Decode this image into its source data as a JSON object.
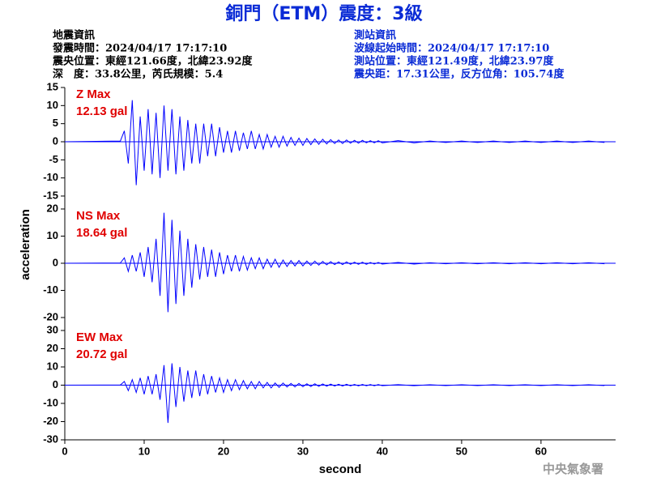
{
  "header": {
    "title": "銅門（ETM）震度：3級",
    "left": [
      "地震資訊",
      "發震時間：2024/04/17 17:17:10",
      "震央位置：東經121.66度，北緯23.92度",
      "深　度：33.8公里，芮氏規模：5.4"
    ],
    "right": [
      "測站資訊",
      "波線起始時間：2024/04/17 17:17:10",
      "測站位置：東經121.49度，北緯23.97度",
      "震央距：17.31公里，反方位角：105.74度"
    ]
  },
  "y_label": "acceleration",
  "footer": "中央氣象署",
  "chart_data": [
    {
      "type": "line",
      "annotation": [
        "Z Max",
        "12.13 gal"
      ],
      "xlim": [
        0,
        69.4
      ],
      "ylim": [
        -15,
        15
      ],
      "yticks": [
        15,
        10,
        5,
        0,
        -5,
        -10,
        -15
      ],
      "x": [
        0,
        7,
        7.5,
        8,
        8.5,
        9,
        9.5,
        10,
        10.5,
        11,
        11.5,
        12,
        12.5,
        13,
        13.5,
        14,
        14.5,
        15,
        15.5,
        16,
        16.5,
        17,
        17.5,
        18,
        18.5,
        19,
        19.5,
        20,
        20.5,
        21,
        21.5,
        22,
        22.5,
        23,
        23.5,
        24,
        24.5,
        25,
        25.5,
        26,
        26.5,
        27,
        27.5,
        28,
        28.5,
        29,
        29.5,
        30,
        30.5,
        31,
        31.5,
        32,
        32.5,
        33,
        33.5,
        34,
        34.5,
        35,
        35.5,
        36,
        36.5,
        37,
        37.5,
        38,
        38.5,
        39,
        39.5,
        40,
        42,
        44,
        46,
        48,
        50,
        52,
        54,
        56,
        58,
        60,
        62,
        64,
        66,
        68
      ],
      "series": [
        {
          "color": "#0000ff",
          "values": [
            0,
            0.2,
            3,
            -6,
            11.5,
            -12,
            7,
            -8,
            9,
            -9,
            8,
            -10,
            10,
            -8,
            9,
            -9,
            7,
            -8,
            6,
            -6,
            5,
            -6,
            5,
            -4,
            5,
            -4,
            4,
            -3,
            3,
            -3,
            3,
            -2.5,
            2.5,
            -2,
            3,
            -2,
            2,
            -2,
            2,
            -1.5,
            1.5,
            -1.5,
            1.5,
            -1.2,
            1.2,
            -1,
            1,
            -1,
            0.9,
            -0.8,
            0.8,
            -0.7,
            0.7,
            -0.6,
            0.6,
            -0.5,
            0.5,
            -0.5,
            0.5,
            -0.4,
            0.4,
            -0.4,
            0.4,
            -0.3,
            0.3,
            -0.3,
            0.3,
            -0.3,
            0.3,
            -0.3,
            0.2,
            -0.2,
            0.2,
            -0.2,
            0.2,
            -0.2,
            0.2,
            -0.2,
            0.2,
            -0.2,
            0.2,
            -0.2
          ]
        }
      ]
    },
    {
      "type": "line",
      "annotation": [
        "NS Max",
        "18.64 gal"
      ],
      "xlim": [
        0,
        69.4
      ],
      "ylim": [
        -20,
        20
      ],
      "yticks": [
        20,
        10,
        0,
        -10,
        -20
      ],
      "x": [
        0,
        7,
        7.5,
        8,
        8.5,
        9,
        9.5,
        10,
        10.5,
        11,
        11.5,
        12,
        12.5,
        13,
        13.5,
        14,
        14.5,
        15,
        15.5,
        16,
        16.5,
        17,
        17.5,
        18,
        18.5,
        19,
        19.5,
        20,
        20.5,
        21,
        21.5,
        22,
        22.5,
        23,
        23.5,
        24,
        24.5,
        25,
        25.5,
        26,
        26.5,
        27,
        27.5,
        28,
        28.5,
        29,
        29.5,
        30,
        30.5,
        31,
        31.5,
        32,
        32.5,
        33,
        33.5,
        34,
        34.5,
        35,
        35.5,
        36,
        36.5,
        37,
        37.5,
        38,
        38.5,
        39,
        39.5,
        40,
        42,
        44,
        46,
        48,
        50,
        52,
        54,
        56,
        58,
        60,
        62,
        64,
        66,
        68
      ],
      "series": [
        {
          "color": "#0000ff",
          "values": [
            0,
            0.1,
            2,
            -3,
            3,
            -3,
            4,
            -5,
            6,
            -7,
            9,
            -12,
            18.6,
            -18,
            16,
            -15,
            12,
            -12,
            9,
            -9,
            7,
            -6,
            6,
            -5,
            5,
            -5,
            4,
            -4,
            3,
            -3,
            3,
            -3,
            2.5,
            -2.5,
            2,
            -2,
            2,
            -2,
            1.5,
            -1.5,
            1.5,
            -1.5,
            1.2,
            -1.2,
            1,
            -1,
            1,
            -1,
            0.8,
            -0.8,
            0.8,
            -0.7,
            0.7,
            -0.6,
            0.6,
            -0.5,
            0.5,
            -0.5,
            0.5,
            -0.4,
            0.4,
            -0.4,
            0.4,
            -0.4,
            0.3,
            -0.3,
            0.3,
            -0.3,
            0.3,
            -0.3,
            0.2,
            -0.2,
            0.2,
            -0.2,
            0.2,
            -0.2,
            0.2,
            -0.2,
            0.2,
            -0.2,
            0.2,
            -0.2
          ]
        }
      ]
    },
    {
      "type": "line",
      "annotation": [
        "EW Max",
        "20.72 gal"
      ],
      "xlim": [
        0,
        69.4
      ],
      "ylim": [
        -30,
        30
      ],
      "yticks": [
        30,
        20,
        10,
        0,
        -10,
        -20,
        -30
      ],
      "xticks": [
        0,
        10,
        20,
        30,
        40,
        50,
        60
      ],
      "x_label": "second",
      "x": [
        0,
        7,
        7.5,
        8,
        8.5,
        9,
        9.5,
        10,
        10.5,
        11,
        11.5,
        12,
        12.5,
        13,
        13.5,
        14,
        14.5,
        15,
        15.5,
        16,
        16.5,
        17,
        17.5,
        18,
        18.5,
        19,
        19.5,
        20,
        20.5,
        21,
        21.5,
        22,
        22.5,
        23,
        23.5,
        24,
        24.5,
        25,
        25.5,
        26,
        26.5,
        27,
        27.5,
        28,
        28.5,
        29,
        29.5,
        30,
        30.5,
        31,
        31.5,
        32,
        32.5,
        33,
        33.5,
        34,
        34.5,
        35,
        35.5,
        36,
        36.5,
        37,
        37.5,
        38,
        38.5,
        39,
        39.5,
        40,
        42,
        44,
        46,
        48,
        50,
        52,
        54,
        56,
        58,
        60,
        62,
        64,
        66,
        68
      ],
      "series": [
        {
          "color": "#0000ff",
          "values": [
            0,
            0.1,
            2,
            -3,
            3,
            -4,
            4,
            -5,
            5,
            -5,
            6,
            -8,
            11,
            -20.7,
            12,
            -12,
            10,
            -9,
            8,
            -7,
            8,
            -6,
            6,
            -5,
            5,
            -4,
            4,
            -4,
            3,
            -3,
            3,
            -2.5,
            2.5,
            -2,
            2,
            -2,
            2,
            -1.5,
            1.5,
            -1.5,
            1.2,
            -1.2,
            1.2,
            -1,
            1,
            -1,
            1,
            -0.9,
            0.8,
            -0.8,
            0.8,
            -0.7,
            0.7,
            -0.6,
            0.6,
            -0.5,
            0.5,
            -0.5,
            0.5,
            -0.4,
            0.4,
            -0.4,
            0.4,
            -0.3,
            0.3,
            -0.3,
            0.3,
            -0.3,
            0.3,
            -0.3,
            0.2,
            -0.2,
            0.2,
            -0.2,
            0.2,
            -0.2,
            0.2,
            -0.2,
            0.2,
            -0.2,
            0.2,
            -0.2
          ]
        }
      ]
    }
  ]
}
